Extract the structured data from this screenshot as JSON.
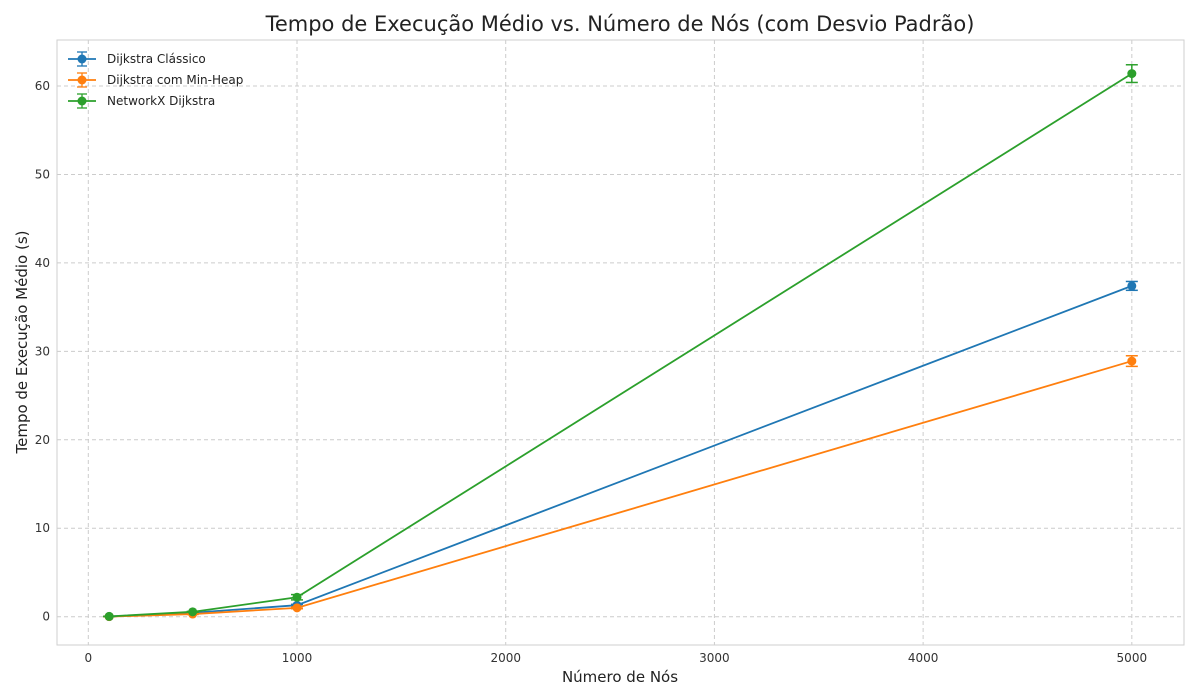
{
  "chart_data": {
    "type": "line",
    "title": "Tempo de Execução Médio vs. Número de Nós (com Desvio Padrão)",
    "xlabel": "Número de Nós",
    "ylabel": "Tempo de Execução Médio (s)",
    "xlim": [
      -150,
      5250
    ],
    "ylim": [
      -3.2,
      65.2
    ],
    "x_ticks": [
      0,
      1000,
      2000,
      3000,
      4000,
      5000
    ],
    "y_ticks": [
      0,
      10,
      20,
      30,
      40,
      50,
      60
    ],
    "grid": true,
    "legend_position": "top-left",
    "x": [
      100,
      500,
      1000,
      5000
    ],
    "series": [
      {
        "name": "Dijkstra Clássico",
        "color": "#1f77b4",
        "values": [
          0.02,
          0.45,
          1.3,
          37.4
        ],
        "errors": [
          0.01,
          0.05,
          0.1,
          0.5
        ]
      },
      {
        "name": "Dijkstra com Min-Heap",
        "color": "#ff7f0e",
        "values": [
          0.01,
          0.3,
          1.0,
          28.9
        ],
        "errors": [
          0.01,
          0.05,
          0.1,
          0.6
        ]
      },
      {
        "name": "NetworkX Dijkstra",
        "color": "#2ca02c",
        "values": [
          0.03,
          0.55,
          2.2,
          61.4
        ],
        "errors": [
          0.01,
          0.05,
          0.3,
          1.0
        ]
      }
    ]
  }
}
